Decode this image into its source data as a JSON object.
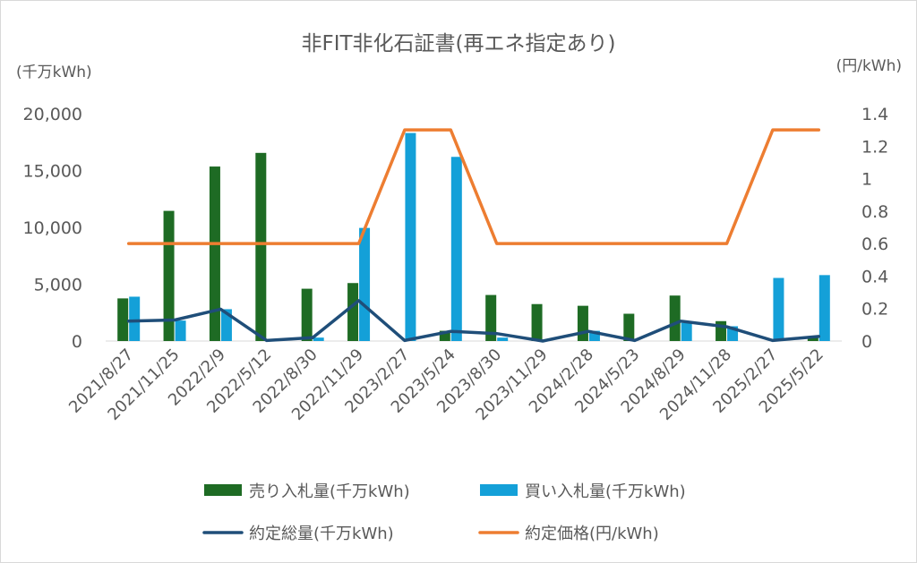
{
  "chart_data": {
    "type": "bar",
    "title": "非FIT非化石証書(再エネ指定あり)",
    "y_left_unit": "(千万kWh)",
    "y_right_unit": "(円/kWh)",
    "y_left_ticks": [
      "0",
      "5,000",
      "10,000",
      "15,000",
      "20,000"
    ],
    "y_right_ticks": [
      "0",
      "0.2",
      "0.4",
      "0.6",
      "0.8",
      "1",
      "1.2",
      "1.4"
    ],
    "ylim_left": [
      0,
      20000
    ],
    "ylim_right": [
      0,
      1.4
    ],
    "grid": false,
    "legend_position": "bottom",
    "categories": [
      "2021/8/27",
      "2021/11/25",
      "2022/2/9",
      "2022/5/12",
      "2022/8/30",
      "2022/11/29",
      "2023/2/27",
      "2023/5/24",
      "2023/8/30",
      "2023/11/29",
      "2024/2/28",
      "2024/5/23",
      "2024/8/29",
      "2024/11/28",
      "2025/2/27",
      "2025/5/22"
    ],
    "series": [
      {
        "name": "売り入札量(千万kWh)",
        "kind": "bar",
        "axis": "left",
        "color": "#1e6b24",
        "values": [
          3750,
          11450,
          15350,
          16550,
          4600,
          5100,
          0,
          900,
          4050,
          3250,
          3100,
          2400,
          4000,
          1750,
          0,
          400
        ]
      },
      {
        "name": "買い入札量(千万kWh)",
        "kind": "bar",
        "axis": "left",
        "color": "#14a0d8",
        "values": [
          3900,
          1800,
          2800,
          0,
          300,
          9950,
          18300,
          16200,
          300,
          0,
          900,
          0,
          1600,
          1300,
          5550,
          5800
        ]
      },
      {
        "name": "約定総量(千万kWh)",
        "kind": "line",
        "axis": "left",
        "color": "#1f4e79",
        "values": [
          1750,
          1850,
          2800,
          50,
          300,
          3550,
          50,
          850,
          650,
          0,
          850,
          50,
          1750,
          1250,
          50,
          400
        ]
      },
      {
        "name": "約定価格(円/kWh)",
        "kind": "line",
        "axis": "right",
        "color": "#ed7d31",
        "values": [
          0.6,
          0.6,
          0.6,
          0.6,
          0.6,
          0.6,
          1.3,
          1.3,
          0.6,
          0.6,
          0.6,
          0.6,
          0.6,
          0.6,
          1.3,
          1.3
        ]
      }
    ]
  }
}
